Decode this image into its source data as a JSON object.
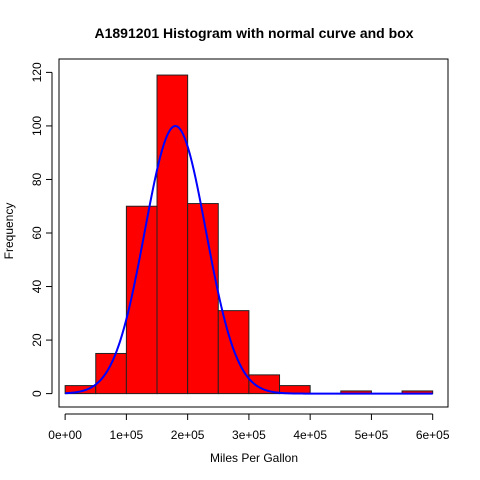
{
  "chart_data": {
    "type": "bar",
    "title": "A1891201 Histogram with normal curve and box",
    "xlabel": "Miles Per Gallon",
    "ylabel": "Frequency",
    "bins": [
      {
        "from": 0,
        "to": 50000,
        "count": 3
      },
      {
        "from": 50000,
        "to": 100000,
        "count": 15
      },
      {
        "from": 100000,
        "to": 150000,
        "count": 70
      },
      {
        "from": 150000,
        "to": 200000,
        "count": 119
      },
      {
        "from": 200000,
        "to": 250000,
        "count": 71
      },
      {
        "from": 250000,
        "to": 300000,
        "count": 31
      },
      {
        "from": 300000,
        "to": 350000,
        "count": 7
      },
      {
        "from": 350000,
        "to": 400000,
        "count": 3
      },
      {
        "from": 400000,
        "to": 450000,
        "count": 0
      },
      {
        "from": 450000,
        "to": 500000,
        "count": 1
      },
      {
        "from": 500000,
        "to": 550000,
        "count": 0
      },
      {
        "from": 550000,
        "to": 600000,
        "count": 1
      }
    ],
    "normal_curve": {
      "mean": 180000,
      "sd": 50000,
      "peak": 100
    },
    "xlim": [
      -10000,
      625000
    ],
    "ylim": [
      -5,
      125
    ],
    "xticks": [
      {
        "value": 0,
        "label": "0e+00"
      },
      {
        "value": 100000,
        "label": "1e+05"
      },
      {
        "value": 200000,
        "label": "2e+05"
      },
      {
        "value": 300000,
        "label": "3e+05"
      },
      {
        "value": 400000,
        "label": "4e+05"
      },
      {
        "value": 500000,
        "label": "5e+05"
      },
      {
        "value": 600000,
        "label": "6e+05"
      }
    ],
    "yticks": [
      {
        "value": 0,
        "label": "0"
      },
      {
        "value": 20,
        "label": "20"
      },
      {
        "value": 40,
        "label": "40"
      },
      {
        "value": 60,
        "label": "60"
      },
      {
        "value": 80,
        "label": "80"
      },
      {
        "value": 100,
        "label": "100"
      },
      {
        "value": 120,
        "label": "120"
      }
    ],
    "grid": false,
    "colors": {
      "bar": "#ff0000",
      "curve": "#0000ff"
    }
  }
}
